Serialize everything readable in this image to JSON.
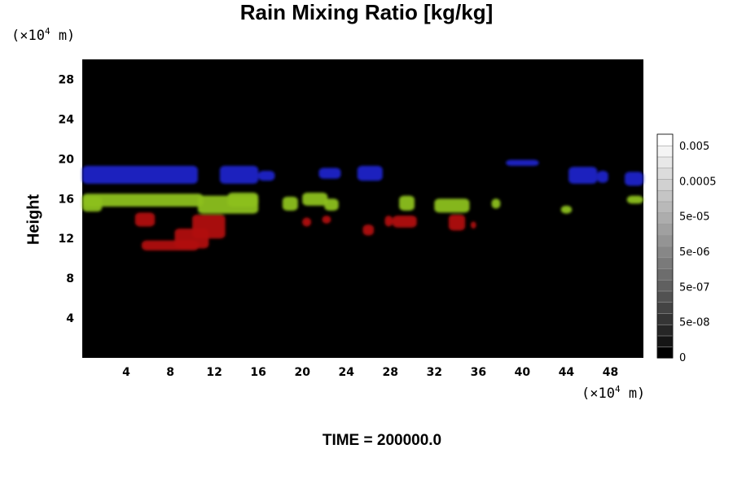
{
  "chart_data": {
    "type": "heatmap",
    "title": "Rain Mixing Ratio [kg/kg]",
    "ylabel": "Height",
    "x_unit": {
      "prefix": "(×10",
      "exp": "4",
      "suffix": " m)"
    },
    "y_unit": {
      "prefix": "(×10",
      "exp": "4",
      "suffix": " m)"
    },
    "xlim": [
      0,
      51
    ],
    "ylim": [
      0,
      30
    ],
    "x_ticks": [
      4,
      8,
      12,
      16,
      20,
      24,
      28,
      32,
      36,
      40,
      44,
      48
    ],
    "y_ticks": [
      4,
      8,
      12,
      16,
      20,
      24,
      28
    ],
    "background": "#000000",
    "colorbar": {
      "ticks": [
        "0.005",
        "0.0005",
        "5e-05",
        "5e-06",
        "5e-07",
        "5e-08",
        "0"
      ],
      "levels": 20,
      "range_colors": [
        "#000000",
        "#ffffff"
      ]
    },
    "features": [
      {
        "name": "blue",
        "color": "#1a22c8",
        "blobs": [
          [
            0,
            17.5,
            10.5,
            19.3
          ],
          [
            12.5,
            17.5,
            16,
            19.3
          ],
          [
            16,
            17.8,
            17.5,
            18.8
          ],
          [
            21.5,
            18,
            23.5,
            19.1
          ],
          [
            25,
            17.8,
            27.3,
            19.3
          ],
          [
            38.5,
            19.3,
            41.5,
            19.9
          ],
          [
            44.2,
            17.5,
            46.8,
            19.2
          ],
          [
            46.8,
            17.6,
            47.8,
            18.8
          ],
          [
            49.3,
            17.3,
            51,
            18.7
          ]
        ]
      },
      {
        "name": "green",
        "color": "#8cc020",
        "blobs": [
          [
            0,
            14.7,
            1.8,
            16.2
          ],
          [
            0,
            15.2,
            11,
            16.5
          ],
          [
            10.5,
            14.5,
            16,
            16.3
          ],
          [
            13.2,
            15.2,
            16,
            16.6
          ],
          [
            18.2,
            14.8,
            19.6,
            16.2
          ],
          [
            20,
            15.3,
            22.3,
            16.6
          ],
          [
            22,
            14.8,
            23.3,
            16
          ],
          [
            28.8,
            14.8,
            30.2,
            16.3
          ],
          [
            32,
            14.6,
            35.2,
            16
          ],
          [
            37.2,
            15,
            38,
            16
          ],
          [
            43.5,
            14.5,
            44.5,
            15.3
          ],
          [
            49.5,
            15.5,
            51,
            16.3
          ]
        ]
      },
      {
        "name": "red",
        "color": "#b01010",
        "blobs": [
          [
            4.8,
            13.2,
            6.6,
            14.6
          ],
          [
            5.4,
            10.8,
            10.6,
            11.8
          ],
          [
            8.4,
            11,
            11.5,
            13
          ],
          [
            10,
            12,
            13,
            14.4
          ],
          [
            20,
            13.2,
            20.8,
            14.1
          ],
          [
            21.8,
            13.5,
            22.6,
            14.3
          ],
          [
            25.5,
            12.3,
            26.5,
            13.4
          ],
          [
            27.5,
            13.2,
            28.2,
            14.3
          ],
          [
            28.2,
            13.1,
            30.4,
            14.3
          ],
          [
            33.3,
            12.8,
            34.8,
            14.4
          ],
          [
            35.3,
            13,
            35.8,
            13.7
          ]
        ]
      }
    ]
  },
  "time_label": "TIME = 200000.0"
}
